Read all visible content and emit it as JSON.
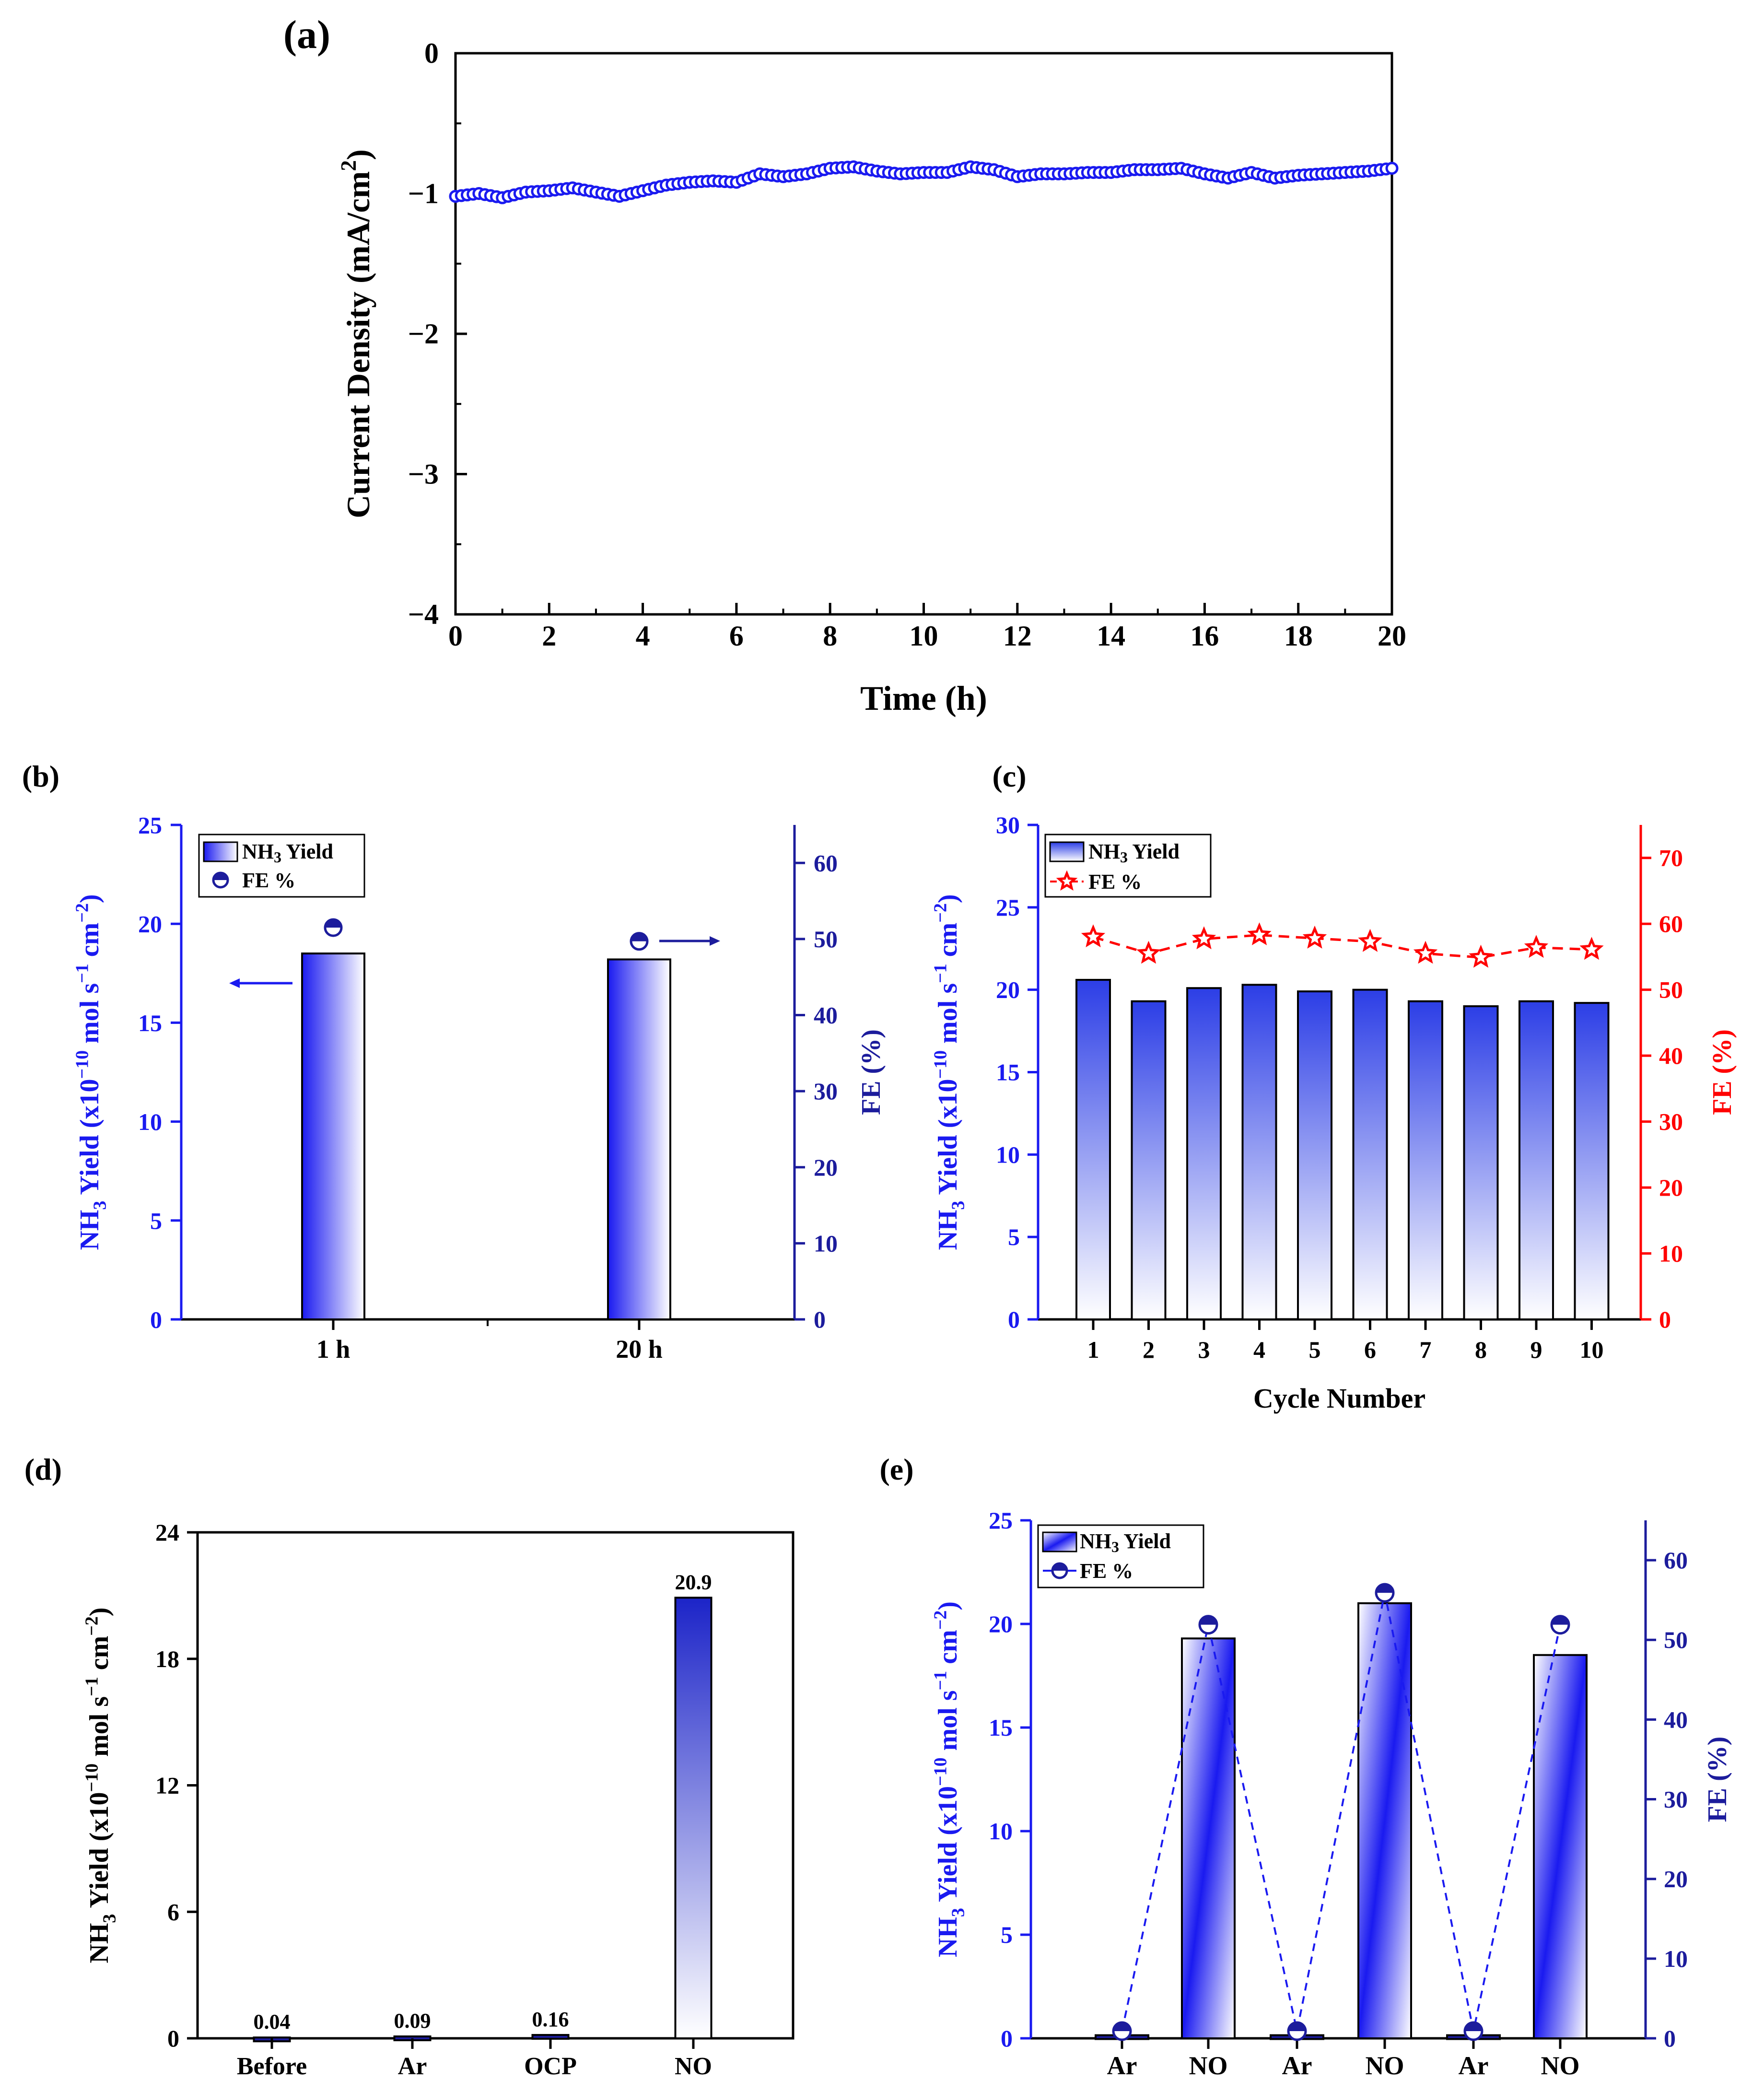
{
  "colors": {
    "blue": "#1a1af0",
    "darkblue": "#1c1c9c",
    "red": "#ff0000",
    "axis": "#000000"
  },
  "chart_data": [
    {
      "id": "a",
      "panel_label": "(a)",
      "type": "line",
      "title": "",
      "xlabel": "Time (h)",
      "ylabel_main": "Current Density (mA/cm",
      "ylabel_sup": "2",
      "ylabel_end": ")",
      "xlim": [
        0,
        20
      ],
      "ylim": [
        -4,
        0
      ],
      "xticks": [
        "0",
        "2",
        "4",
        "6",
        "8",
        "10",
        "12",
        "14",
        "16",
        "18",
        "20"
      ],
      "yticks": [
        "0",
        "−1",
        "−2",
        "−3",
        "−4"
      ],
      "series": [
        {
          "name": "current density",
          "x": [
            0,
            0.5,
            1,
            1.5,
            2,
            2.5,
            3,
            3.5,
            4,
            4.5,
            5,
            5.5,
            6,
            6.5,
            7,
            7.5,
            8,
            8.5,
            9,
            9.5,
            10,
            10.5,
            11,
            11.5,
            12,
            12.5,
            13,
            13.5,
            14,
            14.5,
            15,
            15.5,
            16,
            16.5,
            17,
            17.5,
            18,
            18.5,
            19,
            19.5,
            20
          ],
          "y": [
            -1.02,
            -1.0,
            -1.03,
            -0.99,
            -0.98,
            -0.96,
            -0.99,
            -1.02,
            -0.98,
            -0.94,
            -0.92,
            -0.91,
            -0.92,
            -0.86,
            -0.88,
            -0.86,
            -0.82,
            -0.81,
            -0.84,
            -0.86,
            -0.85,
            -0.85,
            -0.81,
            -0.83,
            -0.88,
            -0.86,
            -0.86,
            -0.85,
            -0.85,
            -0.83,
            -0.83,
            -0.82,
            -0.86,
            -0.89,
            -0.85,
            -0.89,
            -0.87,
            -0.86,
            -0.85,
            -0.84,
            -0.82
          ]
        }
      ]
    },
    {
      "id": "b",
      "panel_label": "(b)",
      "type": "bar",
      "categories": [
        "1 h",
        "20 h"
      ],
      "series": [
        {
          "name": "NH3 Yield",
          "values": [
            18.5,
            18.2
          ]
        },
        {
          "name": "FE %",
          "values": [
            51.5,
            49.7
          ]
        }
      ],
      "ylabel": {
        "pre": "NH",
        "sub": "3",
        "mid": " Yield (x10",
        "sup1": "−10",
        "post": " mol s",
        "sup2": "−1",
        "post2": " cm",
        "sup3": "−2",
        "end": ")"
      },
      "y2label": "FE (%)",
      "ylim": [
        0,
        25
      ],
      "y2lim": [
        0,
        65
      ],
      "yticks": [
        "0",
        "5",
        "10",
        "15",
        "20",
        "25"
      ],
      "y2ticks": [
        "0",
        "10",
        "20",
        "30",
        "40",
        "50",
        "60"
      ],
      "legend": {
        "yield_pre": "NH",
        "yield_sub": "3",
        "yield_post": " Yield",
        "fe": "FE  %"
      }
    },
    {
      "id": "c",
      "panel_label": "(c)",
      "type": "bar",
      "categories": [
        "1",
        "2",
        "3",
        "4",
        "5",
        "6",
        "7",
        "8",
        "9",
        "10"
      ],
      "series": [
        {
          "name": "NH3 Yield",
          "values": [
            20.6,
            19.3,
            20.1,
            20.3,
            19.9,
            20.0,
            19.3,
            19.0,
            19.3,
            19.2
          ]
        },
        {
          "name": "FE %",
          "values": [
            58,
            55.5,
            57.7,
            58.3,
            57.8,
            57.3,
            55.5,
            54.9,
            56.4,
            56.1
          ]
        }
      ],
      "xlabel": "Cycle Number",
      "ylabel": {
        "pre": "NH",
        "sub": "3",
        "mid": " Yield (x10",
        "sup1": "−10",
        "post": " mol s",
        "sup2": "−1",
        "post2": " cm",
        "sup3": "−2",
        "end": ")"
      },
      "y2label": "FE (%)",
      "ylim": [
        0,
        30
      ],
      "y2lim": [
        0,
        75
      ],
      "yticks": [
        "0",
        "5",
        "10",
        "15",
        "20",
        "25",
        "30"
      ],
      "y2ticks": [
        "0",
        "10",
        "20",
        "30",
        "40",
        "50",
        "60",
        "70"
      ],
      "legend": {
        "yield_pre": "NH",
        "yield_sub": "3",
        "yield_post": " Yield",
        "fe": "FE %"
      }
    },
    {
      "id": "d",
      "panel_label": "(d)",
      "type": "bar",
      "categories": [
        "Before",
        "Ar",
        "OCP",
        "NO"
      ],
      "values": [
        0.04,
        0.09,
        0.16,
        20.9
      ],
      "data_labels": [
        "0.04",
        "0.09",
        "0.16",
        "20.9"
      ],
      "ylabel": {
        "pre": "NH",
        "sub": "3",
        "mid": " Yield (x10",
        "sup1": "−10",
        "post": " mol s",
        "sup2": "−1",
        "post2": " cm",
        "sup3": "−2",
        "end": ")"
      },
      "ylim": [
        0,
        24
      ],
      "yticks": [
        "0",
        "6",
        "12",
        "18",
        "24"
      ]
    },
    {
      "id": "e",
      "panel_label": "(e)",
      "type": "bar",
      "categories": [
        "Ar",
        "NO",
        "Ar",
        "NO",
        "Ar",
        "NO"
      ],
      "series": [
        {
          "name": "NH3 Yield",
          "values": [
            0.15,
            19.3,
            0.15,
            21.0,
            0.15,
            18.5
          ]
        },
        {
          "name": "FE %",
          "values": [
            0,
            51,
            0,
            55,
            0,
            51
          ]
        }
      ],
      "ylabel": {
        "pre": "NH",
        "sub": "3",
        "mid": " Yield (x10",
        "sup1": "−10",
        "post": " mol s",
        "sup2": "−1",
        "post2": " cm",
        "sup3": "−2",
        "end": ")"
      },
      "y2label": "FE (%)",
      "ylim": [
        0,
        25
      ],
      "y2lim": [
        0,
        65
      ],
      "yticks": [
        "0",
        "5",
        "10",
        "15",
        "20",
        "25"
      ],
      "y2ticks": [
        "0",
        "10",
        "20",
        "30",
        "40",
        "50",
        "60"
      ],
      "legend": {
        "yield_pre": "NH",
        "yield_sub": "3",
        "yield_post": " Yield",
        "fe": "FE  %"
      }
    }
  ]
}
